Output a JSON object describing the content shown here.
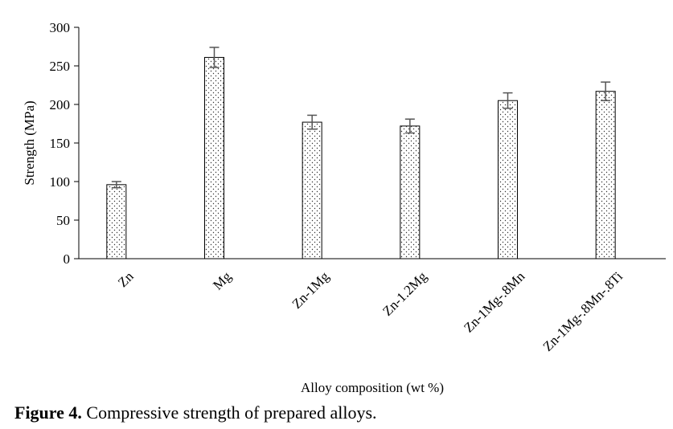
{
  "caption": {
    "label": "Figure 4.",
    "text": "Compressive strength of prepared alloys."
  },
  "chart_data": {
    "type": "bar",
    "xlabel": "Alloy composition (wt %)",
    "ylabel": "Strength (MPa)",
    "ylim": [
      0,
      300
    ],
    "yticks": [
      0,
      50,
      100,
      150,
      200,
      250,
      300
    ],
    "categories": [
      "Zn",
      "Mg",
      "Zn-1Mg",
      "Zn-1.2Mg",
      "Zn-1Mg-.8Mn",
      "Zn-1Mg-.8Mn-.8Ti"
    ],
    "values": [
      96,
      261,
      177,
      172,
      205,
      217
    ],
    "errors": [
      4,
      13,
      9,
      9,
      10,
      12
    ],
    "bar_fill": "dotted pattern",
    "grid": false,
    "legend": "none"
  }
}
